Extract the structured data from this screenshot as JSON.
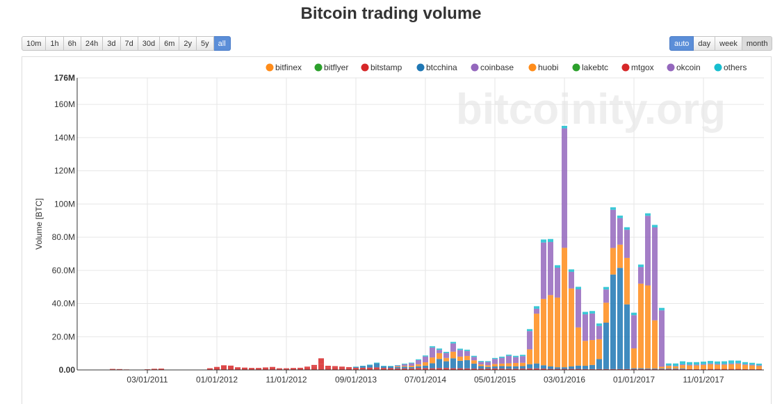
{
  "page": {
    "title": "Bitcoin trading volume",
    "watermark": "bitcoinity.org"
  },
  "range_buttons": [
    {
      "label": "10m",
      "active": false
    },
    {
      "label": "1h",
      "active": false
    },
    {
      "label": "6h",
      "active": false
    },
    {
      "label": "24h",
      "active": false
    },
    {
      "label": "3d",
      "active": false
    },
    {
      "label": "7d",
      "active": false
    },
    {
      "label": "30d",
      "active": false
    },
    {
      "label": "6m",
      "active": false
    },
    {
      "label": "2y",
      "active": false
    },
    {
      "label": "5y",
      "active": false
    },
    {
      "label": "all",
      "active": true
    }
  ],
  "period_buttons": [
    {
      "label": "auto",
      "active": true
    },
    {
      "label": "day",
      "active": false
    },
    {
      "label": "week",
      "active": false
    },
    {
      "label": "month",
      "active": false
    }
  ],
  "colors": {
    "bitfinex": "#ff8c1a",
    "bitflyer": "#2ca02c",
    "bitstamp": "#d62728",
    "btcchina": "#1f77b4",
    "coinbase": "#9467bd",
    "huobi": "#ff8c1a",
    "lakebtc": "#2ca02c",
    "mtgox": "#d62728",
    "okcoin": "#9467bd",
    "others": "#17becf"
  },
  "chart_data": {
    "type": "bar",
    "stacked": true,
    "title": "Bitcoin trading volume",
    "ylabel": "Volume [BTC]",
    "xlabel": "",
    "ylim": [
      0,
      176000000
    ],
    "yticks": [
      0,
      20000000,
      40000000,
      60000000,
      80000000,
      100000000,
      120000000,
      140000000,
      160000000,
      176000000
    ],
    "ytick_labels": [
      "0.00",
      "20.0M",
      "40.0M",
      "60.0M",
      "80.0M",
      "100M",
      "120M",
      "140M",
      "160M",
      "176M"
    ],
    "xticks": [
      {
        "label": "03/01/2011",
        "index": 9
      },
      {
        "label": "01/01/2012",
        "index": 19
      },
      {
        "label": "11/01/2012",
        "index": 29
      },
      {
        "label": "09/01/2013",
        "index": 39
      },
      {
        "label": "07/01/2014",
        "index": 49
      },
      {
        "label": "05/01/2015",
        "index": 59
      },
      {
        "label": "03/01/2016",
        "index": 69
      },
      {
        "label": "01/01/2017",
        "index": 79
      },
      {
        "label": "11/01/2017",
        "index": 89
      }
    ],
    "legend": [
      "bitfinex",
      "bitflyer",
      "bitstamp",
      "btcchina",
      "coinbase",
      "huobi",
      "lakebtc",
      "mtgox",
      "okcoin",
      "others"
    ],
    "legend_position": "top-right",
    "series_order": [
      "mtgox",
      "bitstamp",
      "btcchina",
      "huobi",
      "okcoin",
      "others"
    ],
    "start_month": "07/2010",
    "periods": 98,
    "series": [
      {
        "name": "mtgox",
        "values": [
          0,
          0,
          0.2,
          0.1,
          0.6,
          0.5,
          0.3,
          0.2,
          0.2,
          0.4,
          0.7,
          0.8,
          0,
          0,
          0,
          0,
          0,
          0,
          1.0,
          1.8,
          2.8,
          2.6,
          1.6,
          1.4,
          1.2,
          1.2,
          1.5,
          1.8,
          0.8,
          0.8,
          0.9,
          1.0,
          1.5,
          2.0,
          3.5,
          1.5,
          1.3,
          1.1,
          0.9,
          0.5,
          0.3,
          0.2,
          0.3,
          0.2,
          0.1,
          0.1,
          0.1,
          0.1,
          0.3,
          0.2,
          0,
          0,
          0,
          0,
          0,
          0,
          0,
          0,
          0,
          0,
          0,
          0,
          0,
          0,
          0,
          0,
          0,
          0,
          0,
          0,
          0,
          0,
          0,
          0,
          0,
          0,
          0,
          0,
          0,
          0,
          0,
          0,
          0,
          0,
          0,
          0,
          0,
          0,
          0,
          0,
          0,
          0,
          0,
          0,
          0,
          0,
          0,
          0
        ]
      },
      {
        "name": "bitstamp",
        "values": [
          0,
          0,
          0,
          0,
          0,
          0,
          0,
          0,
          0,
          0,
          0,
          0,
          0,
          0,
          0,
          0,
          0,
          0,
          0,
          0,
          0,
          0,
          0,
          0,
          0,
          0,
          0,
          0,
          0.2,
          0.2,
          0.3,
          0.3,
          0.5,
          1.0,
          3.5,
          1.0,
          1.0,
          0.9,
          0.8,
          0.8,
          1.0,
          1.2,
          1.2,
          1.0,
          1.0,
          0.8,
          0.8,
          0.8,
          0.9,
          0.9,
          1.0,
          1.1,
          1.2,
          1.0,
          1.0,
          0.9,
          0.8,
          0.8,
          0.8,
          0.9,
          0.8,
          0.7,
          0.7,
          0.8,
          0.9,
          0.9,
          0.8,
          0.6,
          0.6,
          0.6,
          0.6,
          0.6,
          0.5,
          0.5,
          0.5,
          0.5,
          0.5,
          0.5,
          0.5,
          0.5,
          0.5,
          0.5,
          0.5,
          0.5,
          0.5,
          0.5,
          0.5,
          0.5,
          0.5,
          0.5,
          0.6,
          0.6,
          0.6,
          0.6,
          0.6,
          0.5,
          0.5,
          0.5
        ]
      },
      {
        "name": "btcchina",
        "values": [
          0,
          0,
          0,
          0,
          0,
          0,
          0,
          0,
          0,
          0,
          0,
          0,
          0,
          0,
          0,
          0,
          0,
          0,
          0,
          0,
          0,
          0,
          0,
          0,
          0,
          0,
          0,
          0,
          0,
          0,
          0,
          0,
          0,
          0,
          0,
          0,
          0,
          0,
          0,
          0.5,
          1.0,
          1.5,
          2.5,
          1.0,
          1.0,
          0.8,
          1.0,
          0.8,
          1.0,
          1.5,
          3.0,
          5.5,
          4.0,
          6.0,
          4.5,
          5.0,
          3.0,
          1.5,
          1.0,
          1.2,
          1.5,
          1.5,
          1.5,
          1.5,
          2.5,
          3.0,
          2.0,
          1.5,
          1.0,
          1.0,
          1.5,
          2.0,
          2.0,
          2.5,
          6.0,
          28.0,
          57.0,
          61.0,
          39.0,
          0.5,
          0.5,
          0.4,
          0.4,
          0.4,
          0.4,
          0.4,
          0.4,
          0,
          0,
          0,
          0,
          0,
          0,
          0,
          0,
          0,
          0,
          0
        ]
      },
      {
        "name": "huobi",
        "values": [
          0,
          0,
          0,
          0,
          0,
          0,
          0,
          0,
          0,
          0,
          0,
          0,
          0,
          0,
          0,
          0,
          0,
          0,
          0,
          0,
          0,
          0,
          0,
          0,
          0,
          0,
          0,
          0,
          0,
          0,
          0,
          0,
          0,
          0,
          0,
          0,
          0,
          0,
          0,
          0,
          0,
          0,
          0,
          0,
          0,
          0.4,
          0.5,
          0.8,
          1.2,
          2.0,
          3.5,
          3.5,
          2.0,
          4.0,
          2.5,
          2.5,
          2.0,
          1.0,
          1.0,
          1.5,
          1.5,
          1.8,
          2.0,
          2.0,
          9.0,
          30.0,
          40.0,
          43.0,
          42.0,
          72.0,
          47.0,
          23.0,
          15.0,
          15.0,
          12.0,
          12.0,
          16.0,
          14.0,
          28.0,
          12.0,
          51.0,
          50.0,
          29.0,
          1.0,
          1.5,
          1.2,
          2.0,
          2.2,
          2.2,
          2.5,
          2.8,
          2.5,
          2.5,
          2.8,
          3.0,
          2.5,
          2.2,
          1.8
        ]
      },
      {
        "name": "okcoin",
        "values": [
          0,
          0,
          0,
          0,
          0,
          0,
          0,
          0,
          0,
          0,
          0,
          0,
          0,
          0,
          0,
          0,
          0,
          0,
          0,
          0,
          0,
          0,
          0,
          0,
          0,
          0,
          0,
          0,
          0,
          0,
          0,
          0,
          0,
          0,
          0,
          0,
          0,
          0,
          0,
          0,
          0,
          0,
          0,
          0,
          0,
          0.5,
          1.0,
          1.5,
          2.5,
          3.5,
          6.0,
          2.0,
          3.0,
          5.0,
          4.0,
          3.0,
          2.0,
          1.5,
          2.0,
          3.0,
          3.5,
          4.5,
          3.5,
          4.0,
          11.0,
          3.0,
          34.0,
          32.0,
          18.0,
          72.0,
          10.0,
          23.0,
          16.0,
          16.0,
          8.0,
          8.0,
          23.0,
          16.0,
          17.0,
          20.0,
          10.0,
          42.0,
          56.0,
          34.0,
          0.3,
          0.3,
          0.5,
          0.5,
          0.5,
          0.5,
          0.5,
          0.5,
          0.5,
          0.5,
          0.5,
          0.5,
          0.5,
          0.5
        ]
      },
      {
        "name": "others",
        "values": [
          0,
          0,
          0,
          0,
          0,
          0,
          0,
          0,
          0,
          0,
          0,
          0,
          0,
          0,
          0,
          0,
          0,
          0,
          0,
          0,
          0,
          0,
          0,
          0,
          0,
          0,
          0,
          0,
          0,
          0,
          0,
          0,
          0,
          0,
          0,
          0,
          0,
          0,
          0,
          0.2,
          0.2,
          0.3,
          0.4,
          0.3,
          0.3,
          0.3,
          0.4,
          0.4,
          0.5,
          0.6,
          0.8,
          0.8,
          0.7,
          0.9,
          0.8,
          0.8,
          0.7,
          0.6,
          0.5,
          0.6,
          0.7,
          0.7,
          0.8,
          0.8,
          1.2,
          1.5,
          1.8,
          1.8,
          1.5,
          1.5,
          1.5,
          1.5,
          1.5,
          1.5,
          1.5,
          1.5,
          1.5,
          1.5,
          1.5,
          1.5,
          1.5,
          1.5,
          1.5,
          1.5,
          1.2,
          1.5,
          1.8,
          1.5,
          1.5,
          1.5,
          1.5,
          1.5,
          1.6,
          1.8,
          1.5,
          1.2,
          1.1,
          1.0
        ]
      }
    ]
  }
}
